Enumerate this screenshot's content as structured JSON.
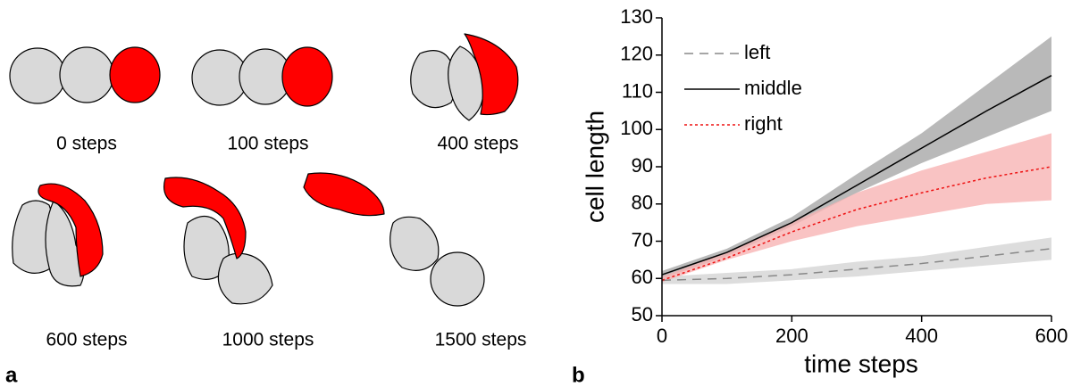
{
  "panel_labels": [
    "a",
    "b"
  ],
  "panel_a": {
    "captions": [
      "0 steps",
      "100 steps",
      "400 steps",
      "600 steps",
      "1000 steps",
      "1500 steps"
    ]
  },
  "chart_data": {
    "type": "line",
    "x_label": "time steps",
    "y_label": "cell length",
    "x": [
      0,
      100,
      200,
      300,
      400,
      500,
      600
    ],
    "xlim": [
      0,
      600
    ],
    "xticks": [
      0,
      200,
      400,
      600
    ],
    "ylim": [
      50,
      130
    ],
    "yticks": [
      50,
      60,
      70,
      80,
      90,
      100,
      110,
      120,
      130
    ],
    "legend": "upper left",
    "series": [
      {
        "name": "left",
        "color": "#888888",
        "band_color": "#d4d4d4",
        "dash": "dashed",
        "values": [
          59.5,
          60,
          61,
          62.5,
          64,
          66,
          68
        ],
        "lower": [
          58.5,
          58.5,
          59.5,
          60.5,
          62,
          63.5,
          65
        ],
        "upper": [
          60.5,
          61.5,
          62.5,
          64.5,
          66,
          68.5,
          71
        ]
      },
      {
        "name": "middle",
        "color": "#000000",
        "band_color": "#a8a8a8",
        "dash": "solid",
        "values": [
          61,
          67,
          75,
          85,
          95,
          105,
          114.5
        ],
        "lower": [
          60,
          66,
          74,
          83,
          91,
          98,
          105
        ],
        "upper": [
          62,
          68,
          76.5,
          88,
          99,
          112,
          125
        ]
      },
      {
        "name": "right",
        "color": "#ee1111",
        "band_color": "#f8b4b4",
        "dash": "dotted",
        "values": [
          59.5,
          65.5,
          72.5,
          78.5,
          83,
          87,
          90
        ],
        "lower": [
          59,
          65,
          70,
          74,
          77,
          80,
          81
        ],
        "upper": [
          60.5,
          67,
          75,
          83,
          89,
          94,
          99
        ]
      }
    ]
  }
}
